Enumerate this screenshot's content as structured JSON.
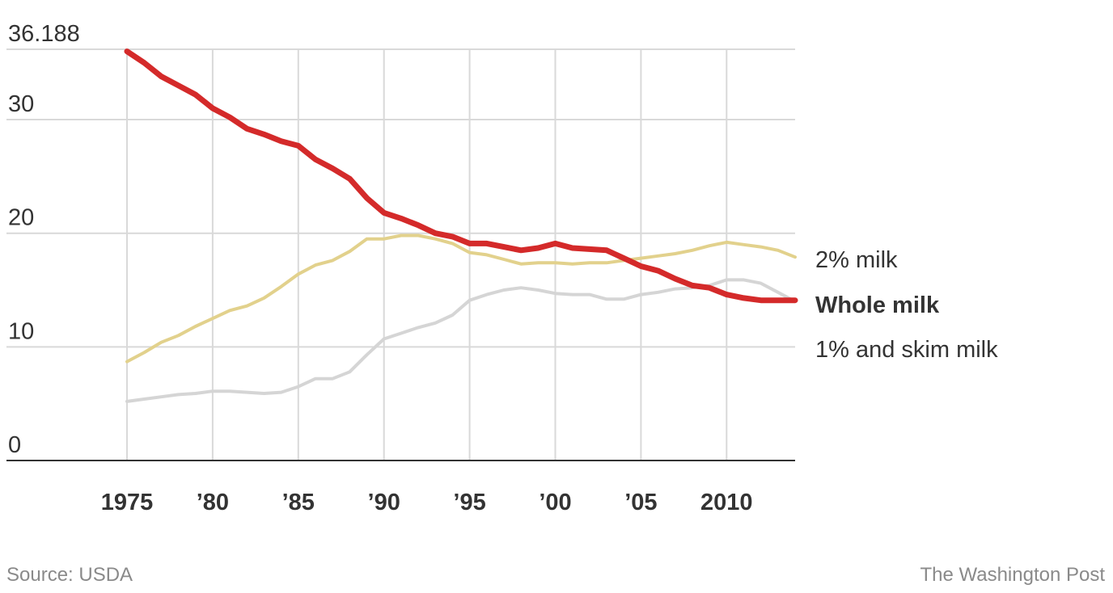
{
  "chart_data": {
    "type": "line",
    "x": [
      1975,
      1976,
      1977,
      1978,
      1979,
      1980,
      1981,
      1982,
      1983,
      1984,
      1985,
      1986,
      1987,
      1988,
      1989,
      1990,
      1991,
      1992,
      1993,
      1994,
      1995,
      1996,
      1997,
      1998,
      1999,
      2000,
      2001,
      2002,
      2003,
      2004,
      2005,
      2006,
      2007,
      2008,
      2009,
      2010,
      2011,
      2012,
      2013,
      2014
    ],
    "series": [
      {
        "name": "2% milk",
        "color": "#e2d18c",
        "values": [
          8.7,
          9.5,
          10.4,
          11.0,
          11.8,
          12.5,
          13.2,
          13.6,
          14.3,
          15.3,
          16.4,
          17.2,
          17.6,
          18.4,
          19.5,
          19.5,
          19.8,
          19.8,
          19.5,
          19.1,
          18.3,
          18.1,
          17.7,
          17.3,
          17.4,
          17.4,
          17.3,
          17.4,
          17.4,
          17.6,
          17.8,
          18.0,
          18.2,
          18.5,
          18.9,
          19.2,
          19.0,
          18.8,
          18.5,
          17.9
        ]
      },
      {
        "name": "Whole milk",
        "color": "#d42a2a",
        "values": [
          36.0,
          35.0,
          33.8,
          33.0,
          32.2,
          31.0,
          30.2,
          29.2,
          28.7,
          28.1,
          27.7,
          26.5,
          25.7,
          24.8,
          23.1,
          21.8,
          21.3,
          20.7,
          20.0,
          19.7,
          19.1,
          19.1,
          18.8,
          18.5,
          18.7,
          19.1,
          18.7,
          18.6,
          18.5,
          17.8,
          17.1,
          16.7,
          16.0,
          15.4,
          15.2,
          14.6,
          14.3,
          14.1,
          14.1,
          14.1
        ]
      },
      {
        "name": "1% and skim milk",
        "color": "#d5d5d5",
        "values": [
          5.2,
          5.4,
          5.6,
          5.8,
          5.9,
          6.1,
          6.1,
          6.0,
          5.9,
          6.0,
          6.5,
          7.2,
          7.2,
          7.8,
          9.3,
          10.7,
          11.2,
          11.7,
          12.1,
          12.8,
          14.1,
          14.6,
          15.0,
          15.2,
          15.0,
          14.7,
          14.6,
          14.6,
          14.2,
          14.2,
          14.6,
          14.8,
          15.1,
          15.2,
          15.4,
          15.9,
          15.9,
          15.6,
          14.8,
          14.0
        ]
      }
    ],
    "yticks": [
      0,
      10,
      20,
      30
    ],
    "ytick_labels": [
      "0",
      "10",
      "20",
      "30"
    ],
    "ymax_label": "36.188",
    "xticks": [
      1975,
      1980,
      1985,
      1990,
      1995,
      2000,
      2005,
      2010
    ],
    "xtick_labels": [
      "1975",
      "’80",
      "’85",
      "’90",
      "’95",
      "’00",
      "’05",
      "2010"
    ],
    "xlim": [
      1975,
      2014
    ],
    "ylim": [
      0,
      36.188
    ],
    "grid": true,
    "legend_placement": "right, inline labels at line ends"
  },
  "footer": {
    "source": "Source: USDA",
    "credit": "The Washington Post"
  },
  "colors": {
    "grid": "#d9d9d9",
    "axis": "#333333",
    "text": "#333333",
    "footer_text": "#8a8a8a"
  }
}
